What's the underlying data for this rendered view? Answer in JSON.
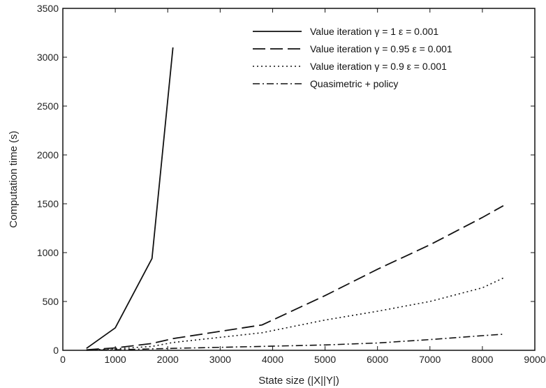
{
  "chart_data": {
    "type": "line",
    "title": "",
    "xlabel": "State size (|X||Y|)",
    "ylabel": "Computation time (s)",
    "xlim": [
      0,
      9000
    ],
    "ylim": [
      0,
      3500
    ],
    "x_ticks": [
      0,
      1000,
      2000,
      3000,
      4000,
      5000,
      6000,
      7000,
      8000,
      9000
    ],
    "y_ticks": [
      0,
      500,
      1000,
      1500,
      2000,
      2500,
      3000,
      3500
    ],
    "grid": false,
    "legend_position": "top-right",
    "series": [
      {
        "name": "Value iteration γ = 1   ε = 0.001",
        "style": "solid",
        "x": [
          450,
          1000,
          1700,
          2100
        ],
        "y": [
          20,
          230,
          940,
          3100
        ]
      },
      {
        "name": "Value iteration γ = 0.95   ε = 0.001",
        "style": "dashed",
        "x": [
          450,
          1000,
          1700,
          2100,
          3800,
          5000,
          6000,
          7000,
          8000,
          8400
        ],
        "y": [
          5,
          25,
          70,
          120,
          260,
          560,
          830,
          1080,
          1360,
          1480
        ]
      },
      {
        "name": "Value iteration γ = 0.9   ε = 0.001",
        "style": "dotted",
        "x": [
          450,
          1000,
          1700,
          2100,
          3800,
          5000,
          6000,
          7000,
          8000,
          8400
        ],
        "y": [
          3,
          15,
          40,
          80,
          180,
          310,
          400,
          500,
          640,
          740
        ]
      },
      {
        "name": "Quasimetric + policy",
        "style": "dashdot",
        "x": [
          450,
          1000,
          1700,
          2100,
          3800,
          5000,
          6000,
          7000,
          8000,
          8400
        ],
        "y": [
          1,
          5,
          15,
          20,
          40,
          55,
          75,
          110,
          150,
          165
        ]
      }
    ]
  }
}
